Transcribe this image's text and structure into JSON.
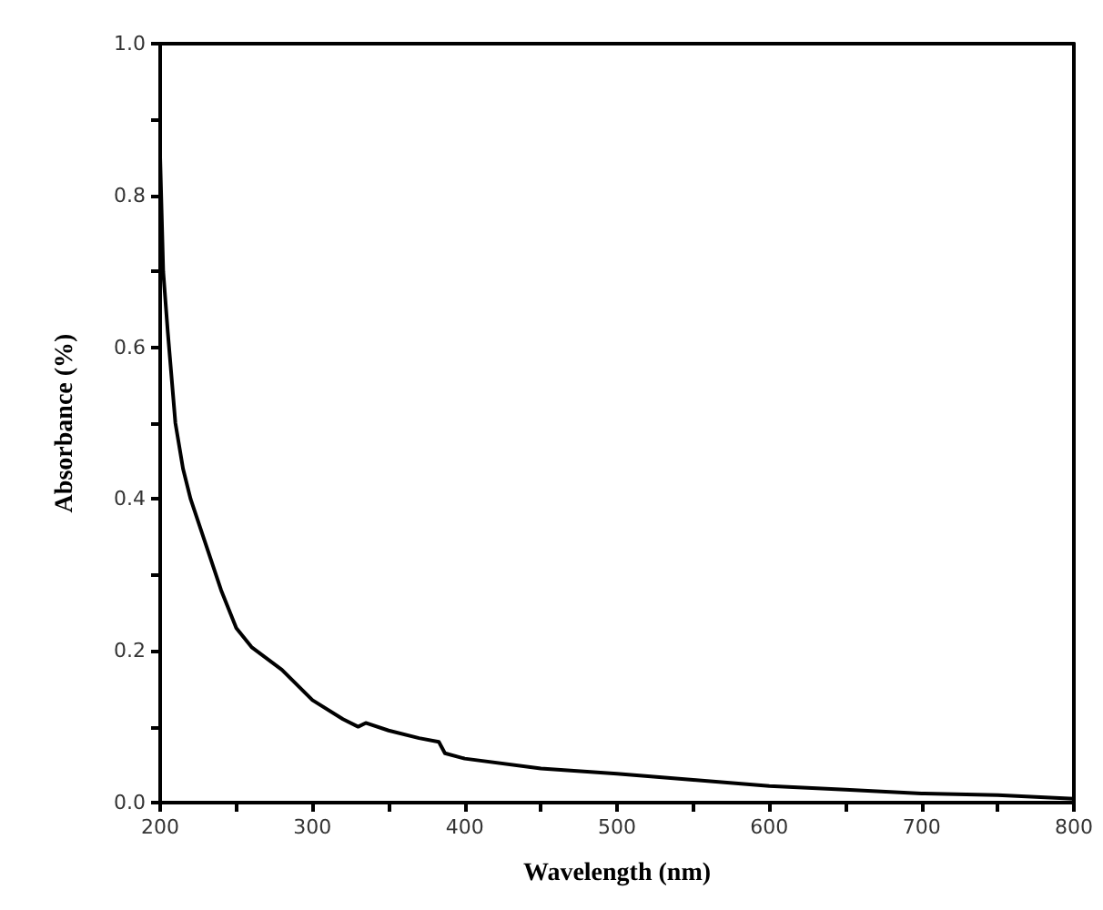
{
  "chart_data": {
    "type": "line",
    "xlabel": "Wavelength (nm)",
    "ylabel": "Absorbance (%)",
    "series": [
      {
        "color": "#000000",
        "x": [
          200,
          202,
          205,
          210,
          215,
          220,
          230,
          240,
          250,
          260,
          280,
          300,
          320,
          330,
          335,
          350,
          370,
          383,
          387,
          400,
          450,
          500,
          550,
          600,
          650,
          700,
          750,
          800
        ],
        "values": [
          0.85,
          0.7,
          0.62,
          0.5,
          0.44,
          0.4,
          0.34,
          0.28,
          0.23,
          0.205,
          0.175,
          0.135,
          0.11,
          0.1,
          0.105,
          0.095,
          0.085,
          0.08,
          0.065,
          0.058,
          0.045,
          0.038,
          0.03,
          0.022,
          0.017,
          0.012,
          0.01,
          0.005
        ]
      }
    ],
    "xlim": [
      200,
      800
    ],
    "xticks": [
      200,
      {
        "value": 250,
        "label": null
      },
      300,
      {
        "value": 350,
        "label": null
      },
      400,
      {
        "value": 450,
        "label": null
      },
      500,
      {
        "value": 550,
        "label": null
      },
      600,
      {
        "value": 650,
        "label": null
      },
      700,
      {
        "value": 750,
        "label": null
      },
      800
    ],
    "ylim": [
      0,
      1
    ],
    "yticks": [
      {
        "value": 0,
        "label": "0.0"
      },
      {
        "value": 0.1,
        "label": null
      },
      {
        "value": 0.2,
        "label": "0.2"
      },
      {
        "value": 0.3,
        "label": null
      },
      {
        "value": 0.4,
        "label": "0.4"
      },
      {
        "value": 0.5,
        "label": null
      },
      {
        "value": 0.6,
        "label": "0.6"
      },
      {
        "value": 0.7,
        "label": null
      },
      {
        "value": 0.8,
        "label": "0.8"
      },
      {
        "value": 0.9,
        "label": null
      },
      {
        "value": 1,
        "label": "1.0"
      }
    ],
    "grid": false,
    "marker": "none",
    "line_style": "solid"
  }
}
